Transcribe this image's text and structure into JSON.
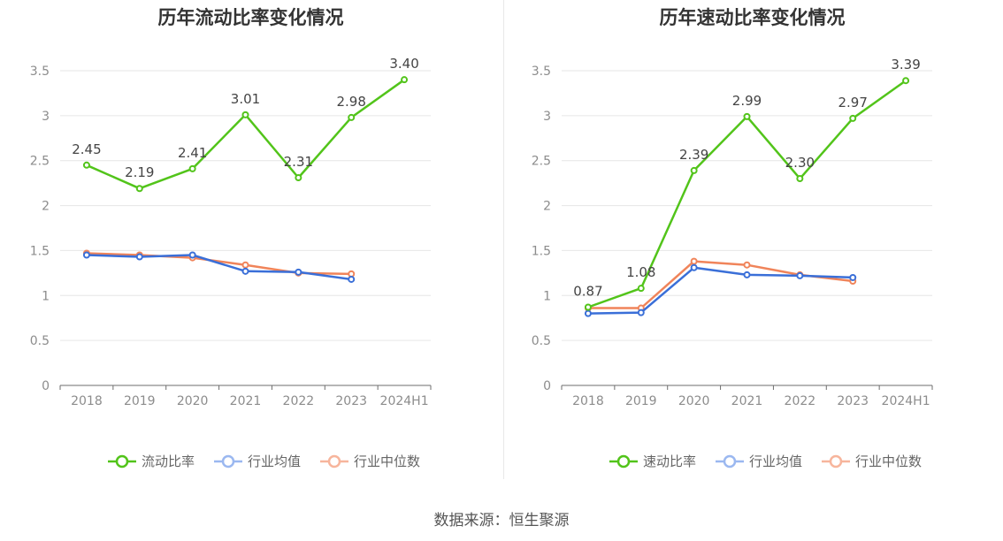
{
  "source_text": "数据来源：恒生聚源",
  "chart_data": [
    {
      "type": "line",
      "title": "历年流动比率变化情况",
      "categories": [
        "2018",
        "2019",
        "2020",
        "2021",
        "2022",
        "2023",
        "2024H1"
      ],
      "ylim": [
        0,
        3.5
      ],
      "yticks": [
        "0",
        "0.5",
        "1",
        "1.5",
        "2",
        "2.5",
        "3",
        "3.5"
      ],
      "grid": true,
      "legend_position": "bottom",
      "series": [
        {
          "name": "流动比率",
          "color": "#52c41a",
          "values": [
            2.45,
            2.19,
            2.41,
            3.01,
            2.31,
            2.98,
            3.4
          ],
          "labels": [
            "2.45",
            "2.19",
            "2.41",
            "3.01",
            "2.31",
            "2.98",
            "3.40"
          ]
        },
        {
          "name": "行业均值",
          "color": "#3a6fd8",
          "values": [
            1.45,
            1.43,
            1.45,
            1.27,
            1.26,
            1.18,
            null
          ]
        },
        {
          "name": "行业中位数",
          "color": "#f0845a",
          "values": [
            1.47,
            1.45,
            1.42,
            1.34,
            1.25,
            1.24,
            null
          ]
        }
      ]
    },
    {
      "type": "line",
      "title": "历年速动比率变化情况",
      "categories": [
        "2018",
        "2019",
        "2020",
        "2021",
        "2022",
        "2023",
        "2024H1"
      ],
      "ylim": [
        0,
        3.5
      ],
      "yticks": [
        "0",
        "0.5",
        "1",
        "1.5",
        "2",
        "2.5",
        "3",
        "3.5"
      ],
      "grid": true,
      "legend_position": "bottom",
      "series": [
        {
          "name": "速动比率",
          "color": "#52c41a",
          "values": [
            0.87,
            1.08,
            2.39,
            2.99,
            2.3,
            2.97,
            3.39
          ],
          "labels": [
            "0.87",
            "1.08",
            "2.39",
            "2.99",
            "2.30",
            "2.97",
            "3.39"
          ]
        },
        {
          "name": "行业均值",
          "color": "#3a6fd8",
          "values": [
            0.8,
            0.81,
            1.31,
            1.23,
            1.22,
            1.2,
            null
          ]
        },
        {
          "name": "行业中位数",
          "color": "#f0845a",
          "values": [
            0.86,
            0.86,
            1.38,
            1.34,
            1.23,
            1.16,
            null
          ]
        }
      ]
    }
  ]
}
